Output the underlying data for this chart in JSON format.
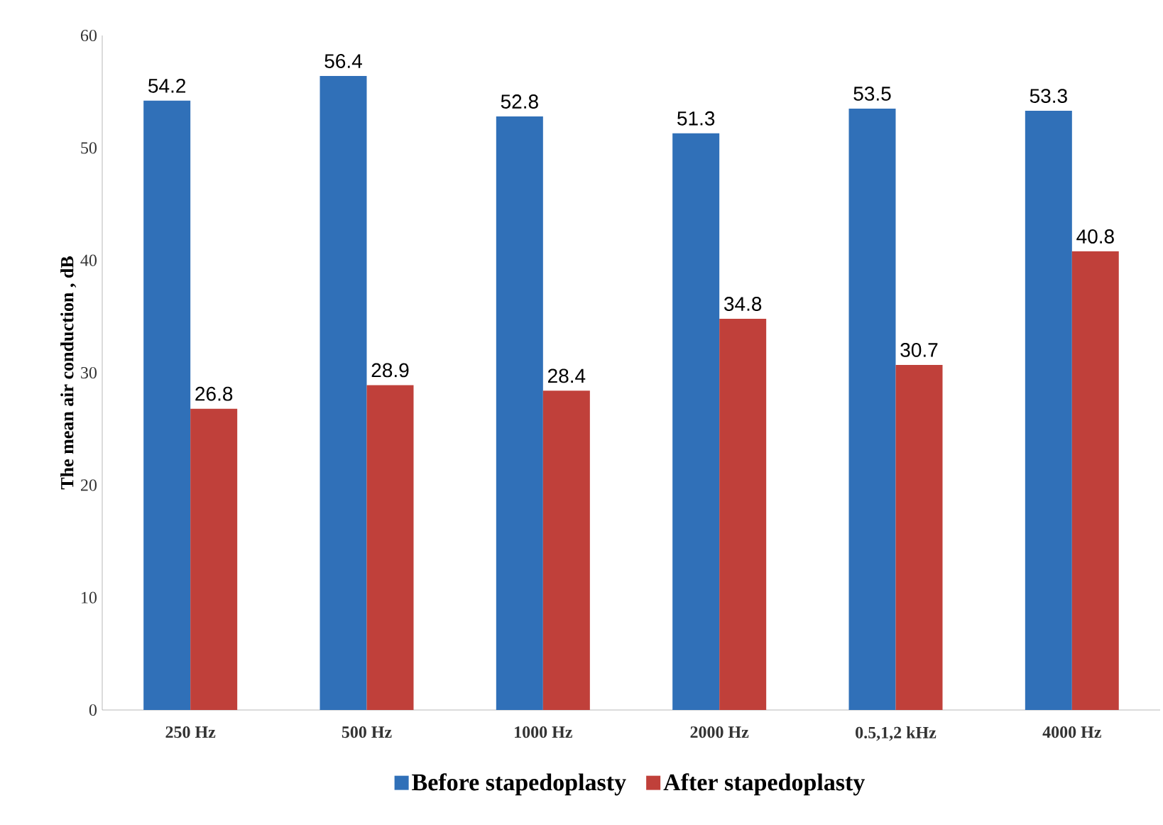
{
  "chart_data": {
    "type": "bar",
    "ylabel": "The mean air conduction , dB",
    "categories": [
      "250 Hz",
      "500 Hz",
      "1000 Hz",
      "2000 Hz",
      "0.5,1,2 kHz",
      "4000 Hz"
    ],
    "series": [
      {
        "name": "Before stapedoplasty",
        "color": "#3070b8",
        "values": [
          54.2,
          56.4,
          52.8,
          51.3,
          53.5,
          53.3
        ]
      },
      {
        "name": "After stapedoplasty",
        "color": "#c0403a",
        "values": [
          26.8,
          28.9,
          28.4,
          34.8,
          30.7,
          40.8
        ]
      }
    ],
    "ylim": [
      0,
      60
    ],
    "yticks": [
      0,
      10,
      20,
      30,
      40,
      50,
      60
    ],
    "data_labels": true,
    "legend": "bottom",
    "grid": false
  }
}
